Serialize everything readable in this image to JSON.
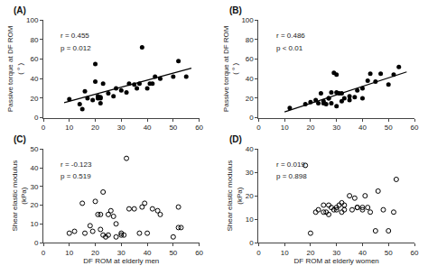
{
  "chart_data": [
    {
      "type": "scatter",
      "title": "(A)",
      "ylabel": "Passive torque at DF ROM\n( ° )",
      "annotations": [
        "r = 0.455",
        "p = 0.012"
      ],
      "series": [
        {
          "type": "scatter",
          "marker": "circle",
          "color": "black",
          "x": [
            10,
            14,
            15,
            16,
            17,
            19,
            20,
            20,
            21,
            21,
            22,
            22,
            22,
            23,
            25,
            27,
            28,
            30,
            32,
            33,
            35,
            36,
            37,
            38,
            40,
            41,
            42,
            43,
            45,
            50,
            52,
            55
          ],
          "values": [
            19,
            14,
            9,
            27,
            20,
            18,
            37,
            55,
            20,
            22,
            21,
            15,
            20,
            35,
            25,
            22,
            30,
            28,
            26,
            35,
            34,
            30,
            35,
            72,
            30,
            35,
            35,
            42,
            40,
            42,
            58,
            42
          ]
        },
        {
          "type": "line",
          "line_style": "solid",
          "color": "black",
          "x": [
            8,
            57
          ],
          "values": [
            15.41,
            50.65
          ]
        }
      ],
      "xlim": [
        0,
        60
      ],
      "ylim": [
        0,
        100
      ],
      "xticks": [
        0,
        10,
        20,
        30,
        40,
        50,
        60
      ],
      "yticks": [
        0,
        20,
        40,
        60,
        80,
        100
      ],
      "grid": false
    },
    {
      "type": "scatter",
      "title": "(B)",
      "ylabel": "Passive torque at DF ROM\n( ° )",
      "annotations": [
        "r = 0.486",
        "p < 0.01"
      ],
      "series": [
        {
          "type": "scatter",
          "marker": "circle",
          "color": "black",
          "x": [
            12,
            18,
            20,
            22,
            23,
            24,
            25,
            25,
            26,
            27,
            27,
            28,
            28,
            29,
            30,
            30,
            30,
            31,
            32,
            32,
            33,
            35,
            35,
            37,
            38,
            40,
            40,
            42,
            43,
            45,
            47,
            50,
            52,
            54
          ],
          "values": [
            10,
            14,
            16,
            18,
            15,
            25,
            17,
            15,
            14,
            20,
            20,
            26,
            15,
            46,
            44,
            26,
            12,
            25,
            25,
            17,
            20,
            22,
            18,
            21,
            28,
            30,
            20,
            38,
            45,
            37,
            45,
            34,
            44,
            52
          ]
        },
        {
          "type": "line",
          "line_style": "solid",
          "color": "black",
          "x": [
            10,
            57
          ],
          "values": [
            6.05,
            46.85
          ]
        }
      ],
      "xlim": [
        0,
        60
      ],
      "ylim": [
        0,
        100
      ],
      "xticks": [
        0,
        10,
        20,
        30,
        40,
        50,
        60
      ],
      "yticks": [
        0,
        20,
        40,
        60,
        80,
        100
      ],
      "grid": false
    },
    {
      "type": "scatter",
      "title": "(C)",
      "xlabel": "DF ROM at elderly men",
      "ylabel": "Shear elastic modulus\n(kPa)",
      "annotations": [
        "r = -0.123",
        "p = 0.519"
      ],
      "series": [
        {
          "type": "scatter",
          "marker": "circle-open",
          "color": "black",
          "x": [
            10,
            12,
            15,
            16,
            18,
            19,
            20,
            21,
            22,
            22,
            23,
            23,
            24,
            25,
            25,
            26,
            27,
            28,
            28,
            30,
            30,
            31,
            32,
            33,
            35,
            37,
            38,
            39,
            40,
            42,
            44,
            45,
            50,
            52,
            52,
            53
          ],
          "values": [
            5,
            6,
            21,
            5,
            9,
            6,
            22,
            15,
            15,
            7,
            27,
            4,
            3,
            15,
            4,
            17,
            14,
            3,
            10,
            4,
            5,
            4,
            45,
            18,
            18,
            5,
            19,
            21,
            5,
            18,
            17,
            15,
            3,
            8,
            19,
            8
          ]
        }
      ],
      "xlim": [
        0,
        60
      ],
      "ylim": [
        0,
        50
      ],
      "xticks": [
        0,
        10,
        20,
        30,
        40,
        50,
        60
      ],
      "yticks": [
        0,
        10,
        20,
        30,
        40,
        50
      ],
      "grid": false
    },
    {
      "type": "scatter",
      "title": "(D)",
      "xlabel": "DF ROM at elderly women",
      "ylabel": "Shear elastic modulus\n(kPa)",
      "annotations": [
        "r = 0.019",
        "p = 0.898"
      ],
      "series": [
        {
          "type": "scatter",
          "marker": "circle-open",
          "color": "black",
          "x": [
            18,
            20,
            22,
            23,
            25,
            25,
            26,
            27,
            27,
            28,
            29,
            30,
            30,
            31,
            32,
            32,
            33,
            33,
            35,
            36,
            37,
            38,
            38,
            40,
            40,
            41,
            42,
            43,
            45,
            46,
            48,
            50,
            52,
            53
          ],
          "values": [
            33,
            4,
            13,
            14,
            13,
            16,
            13,
            12,
            16,
            15,
            14,
            14,
            15,
            16,
            13,
            17,
            16,
            14,
            20,
            14,
            19,
            15,
            15,
            14,
            15,
            20,
            15,
            13,
            5,
            22,
            14,
            5,
            13,
            27
          ]
        }
      ],
      "xlim": [
        0,
        60
      ],
      "ylim": [
        0,
        40
      ],
      "xticks": [
        0,
        10,
        20,
        30,
        40,
        50,
        60
      ],
      "yticks": [
        0,
        10,
        20,
        30,
        40
      ],
      "grid": false
    }
  ]
}
